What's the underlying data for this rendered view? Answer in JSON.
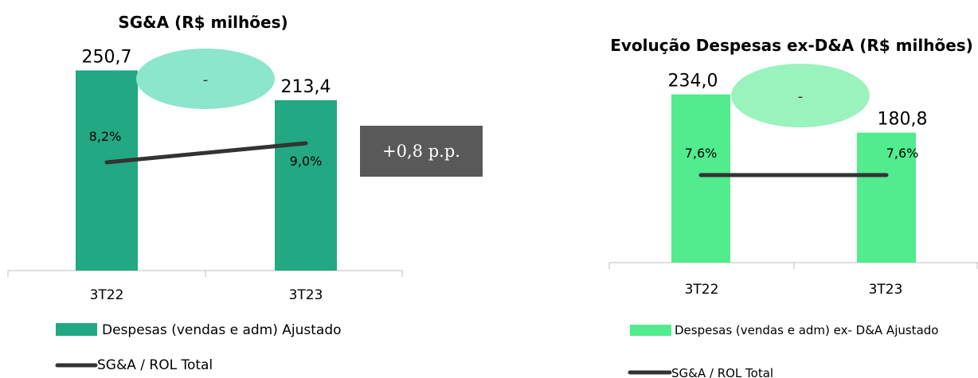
{
  "colors": {
    "bar_left": "#22a882",
    "bar_right": "#52eb8e",
    "ellipse_left": "#8ce6cc",
    "ellipse_right": "#9af3bc",
    "line": "#333333",
    "badge": "#595959",
    "axis": "#bfbfbf"
  },
  "chart_data": [
    {
      "type": "bar",
      "title": "SG&A (R$ milhões)",
      "categories": [
        "3T22",
        "3T23"
      ],
      "ylim": [
        0,
        300
      ],
      "series": [
        {
          "name": "Despesas (vendas e adm) Ajustado",
          "kind": "bar",
          "values": [
            250.7,
            213.4
          ],
          "labels": [
            "250,7",
            "213,4"
          ]
        },
        {
          "name": "SG&A / ROL Total",
          "kind": "line",
          "values": [
            8.2,
            9.0
          ],
          "labels": [
            "8,2%",
            "9,0%"
          ]
        }
      ],
      "annotations": {
        "ellipse_text": "-",
        "badge_text": "+0,8 p.p."
      },
      "legend_position": "bottom"
    },
    {
      "type": "bar",
      "title": "Evolução Despesas ex-D&A (R$ milhões)",
      "categories": [
        "3T22",
        "3T23"
      ],
      "ylim": [
        0,
        300
      ],
      "series": [
        {
          "name": "Despesas (vendas e adm) ex- D&A Ajustado",
          "kind": "bar",
          "values": [
            234.0,
            180.8
          ],
          "labels": [
            "234,0",
            "180,8"
          ]
        },
        {
          "name": "SG&A / ROL Total",
          "kind": "line",
          "values": [
            7.6,
            7.6
          ],
          "labels": [
            "7,6%",
            "7,6%"
          ]
        }
      ],
      "annotations": {
        "ellipse_text": "-"
      },
      "legend_position": "bottom"
    }
  ]
}
